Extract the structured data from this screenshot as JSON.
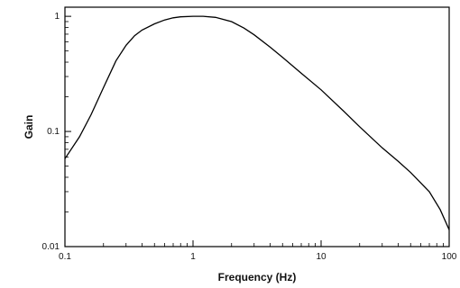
{
  "chart_data": {
    "type": "line",
    "title": "",
    "xlabel": "Frequency (Hz)",
    "ylabel": "Gain",
    "x_scale": "log",
    "y_scale": "log",
    "xlim": [
      0.1,
      100
    ],
    "ylim": [
      0.01,
      1.2
    ],
    "x_ticks": [
      {
        "value": 0.1,
        "label": "0.1"
      },
      {
        "value": 1,
        "label": "1"
      },
      {
        "value": 10,
        "label": "10"
      },
      {
        "value": 100,
        "label": "100"
      }
    ],
    "y_ticks": [
      {
        "value": 0.01,
        "label": "0.01"
      },
      {
        "value": 0.1,
        "label": "0.1"
      },
      {
        "value": 1,
        "label": "1"
      }
    ],
    "grid": false,
    "legend": "none",
    "series": [
      {
        "color": "#000000",
        "x": [
          0.1,
          0.13,
          0.16,
          0.2,
          0.25,
          0.3,
          0.35,
          0.4,
          0.5,
          0.6,
          0.7,
          0.8,
          1.0,
          1.2,
          1.5,
          2.0,
          2.5,
          3.0,
          4.0,
          5.0,
          7.0,
          10.0,
          15.0,
          20.0,
          30.0,
          40.0,
          50.0,
          70.0,
          85.0,
          100.0
        ],
        "y": [
          0.058,
          0.09,
          0.14,
          0.24,
          0.41,
          0.56,
          0.68,
          0.76,
          0.86,
          0.93,
          0.97,
          0.99,
          1.0,
          1.0,
          0.98,
          0.9,
          0.79,
          0.69,
          0.54,
          0.44,
          0.32,
          0.23,
          0.15,
          0.11,
          0.072,
          0.055,
          0.044,
          0.03,
          0.021,
          0.014
        ]
      }
    ]
  }
}
